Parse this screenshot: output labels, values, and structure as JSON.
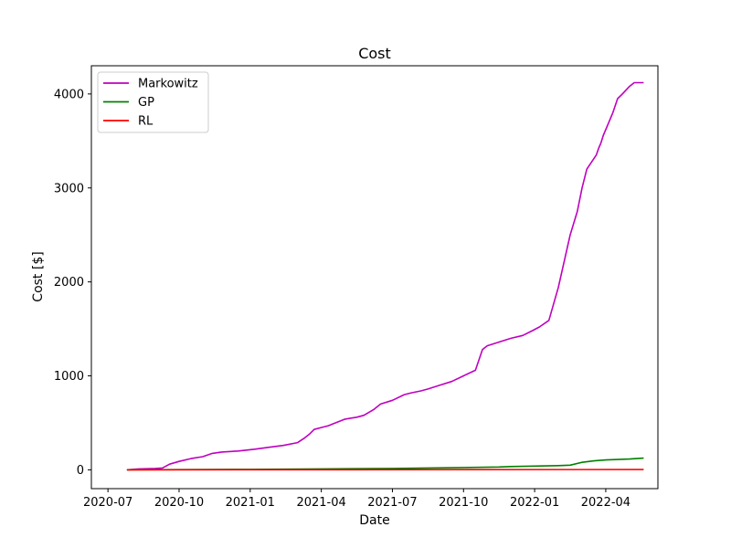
{
  "chart_data": {
    "type": "line",
    "title": "Cost",
    "xlabel": "Date",
    "ylabel": "Cost [$]",
    "x_tick_labels": [
      "2020-07",
      "2020-10",
      "2021-01",
      "2021-04",
      "2021-07",
      "2021-10",
      "2022-01",
      "2022-04"
    ],
    "y_tick_labels": [
      "0",
      "1000",
      "2000",
      "3000",
      "4000"
    ],
    "y_ticks": [
      0,
      1000,
      2000,
      3000,
      4000
    ],
    "x_range_months": [
      -0.7,
      23.2
    ],
    "y_range": [
      -200,
      4300
    ],
    "x_unit": "months since 2020-07",
    "legend_location": "upper-left",
    "grid": false,
    "series": [
      {
        "name": "Markowitz",
        "color": "#bf00bf",
        "x": [
          0.8,
          1.3,
          2.0,
          2.3,
          2.6,
          3.0,
          3.5,
          4.0,
          4.4,
          4.8,
          5.5,
          6.2,
          6.8,
          7.4,
          8.0,
          8.3,
          8.5,
          8.7,
          9.0,
          9.3,
          9.5,
          10.0,
          10.5,
          10.8,
          11.2,
          11.5,
          12.0,
          12.5,
          12.8,
          13.2,
          13.5,
          14.0,
          14.5,
          15.0,
          15.5,
          15.8,
          16.0,
          16.5,
          17.0,
          17.5,
          17.9,
          18.2,
          18.6,
          19.0,
          19.5,
          19.8,
          20.0,
          20.2,
          20.6,
          20.7,
          20.8,
          20.9,
          21.0,
          21.1,
          21.3,
          21.5,
          21.7,
          22.0,
          22.2,
          22.4,
          22.6
        ],
        "y": [
          0,
          10,
          15,
          20,
          60,
          90,
          120,
          140,
          175,
          190,
          200,
          220,
          240,
          260,
          290,
          340,
          380,
          430,
          450,
          470,
          490,
          540,
          560,
          580,
          640,
          700,
          740,
          800,
          820,
          840,
          860,
          900,
          940,
          1000,
          1060,
          1280,
          1320,
          1360,
          1400,
          1430,
          1480,
          1520,
          1590,
          1940,
          2500,
          2750,
          3000,
          3200,
          3350,
          3420,
          3480,
          3560,
          3620,
          3680,
          3800,
          3950,
          4000,
          4080,
          4120,
          4120,
          4120
        ],
        "__x_note": "x values for this and remaining series are months since 2020-07-01"
      },
      {
        "name": "GP",
        "color": "#008000",
        "x": [
          0.8,
          3.0,
          6.0,
          9.0,
          12.0,
          15.0,
          16.5,
          17.0,
          18.0,
          19.0,
          19.5,
          20.0,
          20.5,
          21.0,
          22.0,
          22.6
        ],
        "y": [
          0,
          2,
          5,
          10,
          15,
          25,
          30,
          35,
          40,
          45,
          50,
          80,
          95,
          105,
          115,
          125
        ]
      },
      {
        "name": "RL",
        "color": "#ff0000",
        "x": [
          0.8,
          22.6
        ],
        "y": [
          0,
          3
        ]
      }
    ]
  }
}
